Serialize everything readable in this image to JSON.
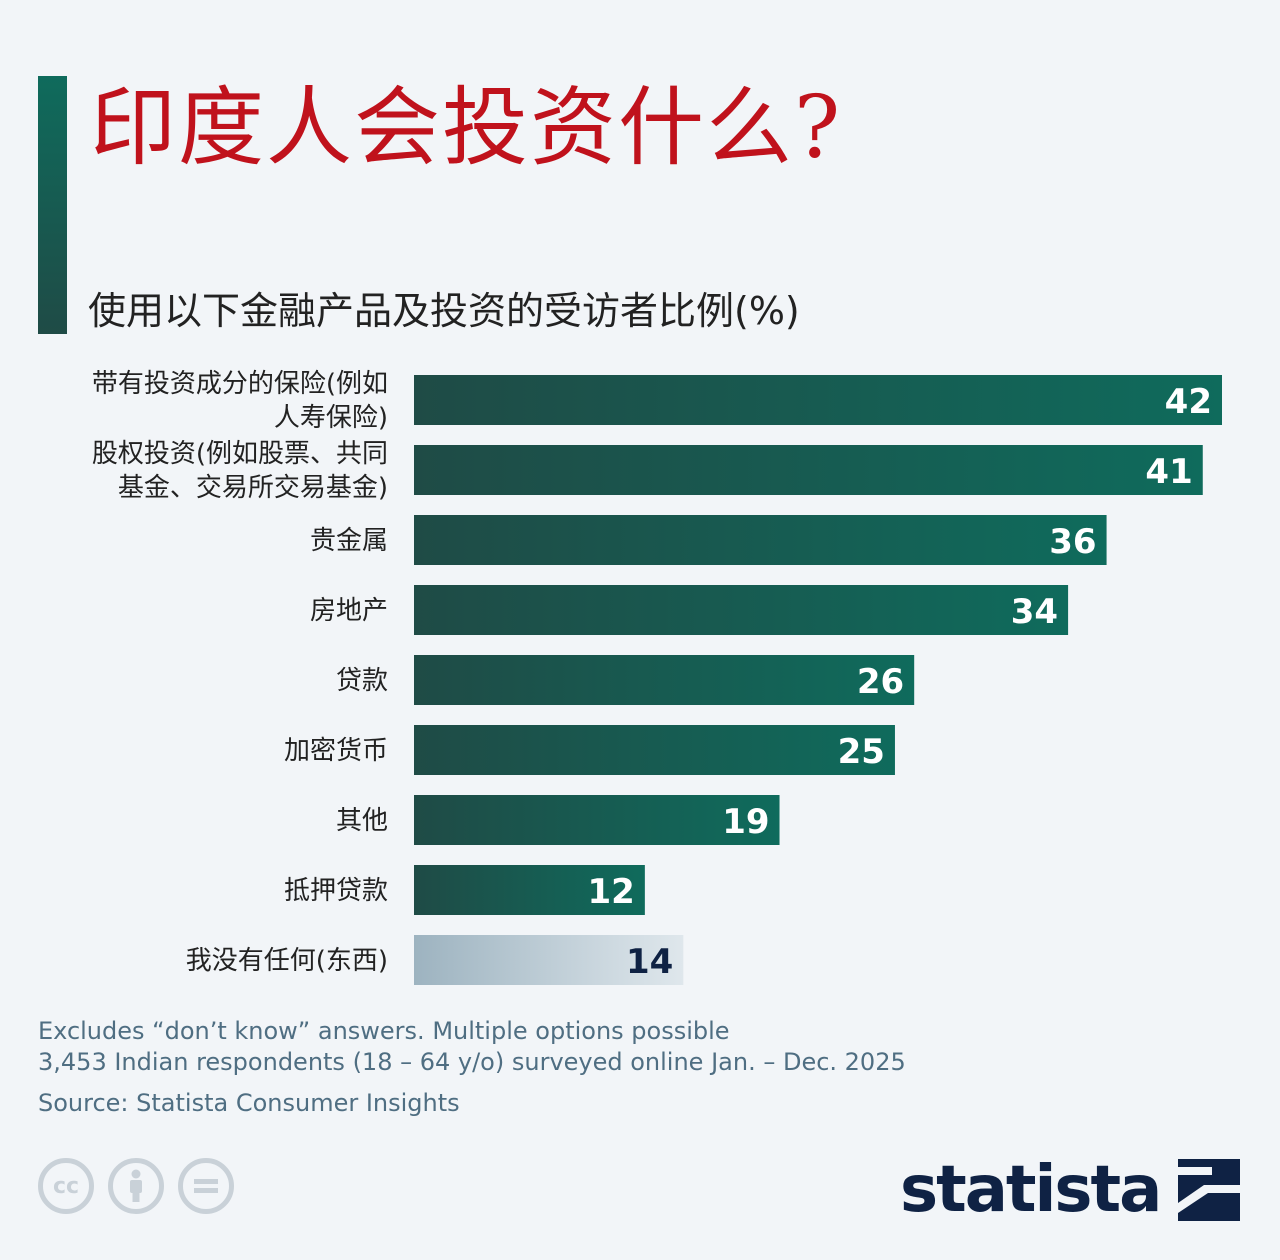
{
  "header": {
    "title": "印度人会投资什么?",
    "subtitle": "使用以下金融产品及投资的受访者比例(%)"
  },
  "chart_data": {
    "type": "bar",
    "orientation": "horizontal",
    "title": "印度人会投资什么?",
    "subtitle": "使用以下金融产品及投资的受访者比例(%)",
    "categories": [
      [
        "带有投资成分的保险(例如",
        "人寿保险)"
      ],
      [
        "股权投资(例如股票、共同",
        "基金、交易所交易基金)"
      ],
      [
        "贵金属"
      ],
      [
        "房地产"
      ],
      [
        "贷款"
      ],
      [
        "加密货币"
      ],
      [
        "其他"
      ],
      [
        "抵押贷款"
      ],
      [
        "我没有任何(东西)"
      ]
    ],
    "values": [
      42,
      41,
      36,
      34,
      26,
      25,
      19,
      12,
      14
    ],
    "highlight": [
      false,
      false,
      false,
      false,
      false,
      false,
      false,
      false,
      true
    ],
    "xlim": [
      0,
      42
    ],
    "colors": {
      "bar_start": "#1f4b46",
      "bar_end": "#0f6b5c",
      "highlight_start": "#9db3c0",
      "highlight_end": "#dfe7ec",
      "label_light": "#ffffff",
      "label_dark": "#0f2244"
    }
  },
  "footer": {
    "note_line1": "Excludes “don’t know” answers. Multiple options possible",
    "note_line2": "3,453 Indian respondents (18 – 64 y/o) surveyed online Jan. – Dec. 2025",
    "source": "Source: Statista Consumer Insights",
    "license_icons": [
      "cc-icon",
      "attribution-icon",
      "no-derivatives-icon"
    ],
    "cc_text": "cc",
    "logo": "statista"
  }
}
